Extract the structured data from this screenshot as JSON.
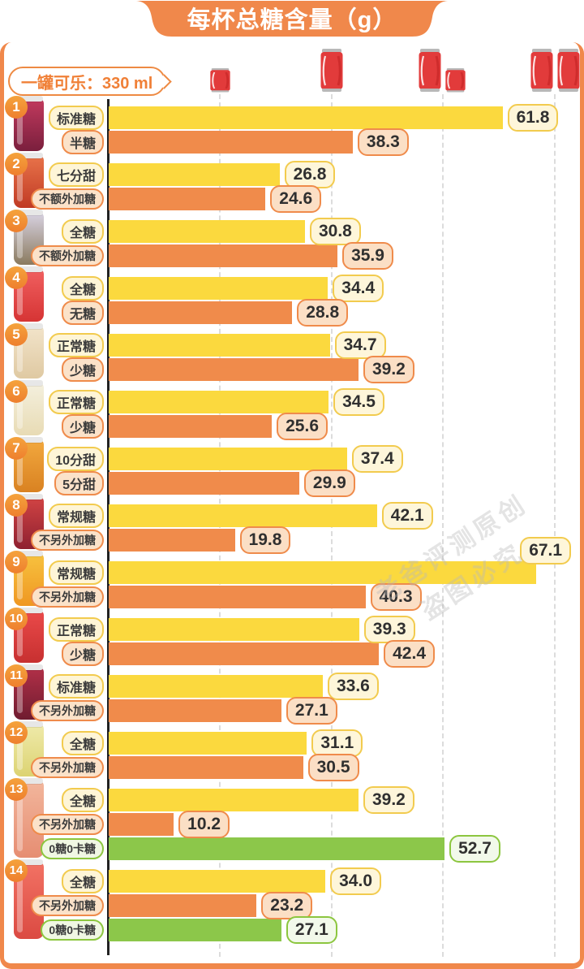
{
  "header": {
    "title": "每杯总糖含量（g）"
  },
  "legend": {
    "cola_label": "一罐可乐：330 ml"
  },
  "watermark": {
    "line1": "老爸评测原创",
    "line2": "盗图必究"
  },
  "colors": {
    "frame_orange": "#f0884b",
    "bar_yellow": "#fbd93e",
    "bar_orange": "#f08b4b",
    "bar_green": "#8cc74a",
    "pill_yellow_border": "#f2cb4e",
    "pill_orange_border": "#ef8b4b",
    "pill_green_border": "#8cc63f",
    "can_red": "#e23b3b",
    "text_dark": "#303030"
  },
  "chart_data": {
    "type": "bar",
    "title": "每杯总糖含量（g）",
    "unit": "g",
    "xlim": [
      0,
      70
    ],
    "legend_note": "一罐可乐：330 ml",
    "grid": "vertical dashed lines marked by cola-can icons",
    "can_markers": [
      0.5,
      1,
      1.5,
      2
    ],
    "items": [
      {
        "rank": 1,
        "cup": [
          "#c23a5e",
          "#7a1f3d"
        ],
        "bars": [
          {
            "label": "标准糖",
            "value": "61.8",
            "series": "yellow"
          },
          {
            "label": "半糖",
            "value": "38.3",
            "series": "orange"
          }
        ]
      },
      {
        "rank": 2,
        "cup": [
          "#e8734a",
          "#c03a24"
        ],
        "bars": [
          {
            "label": "七分甜",
            "value": "26.8",
            "series": "yellow"
          },
          {
            "label": "不额外加糖",
            "value": "24.6",
            "series": "orange"
          }
        ]
      },
      {
        "rank": 3,
        "cup": [
          "#d8d2e2",
          "#8a7a5e"
        ],
        "bars": [
          {
            "label": "全糖",
            "value": "30.8",
            "series": "yellow"
          },
          {
            "label": "不额外加糖",
            "value": "35.9",
            "series": "orange"
          }
        ]
      },
      {
        "rank": 4,
        "cup": [
          "#f06060",
          "#d63434"
        ],
        "bars": [
          {
            "label": "全糖",
            "value": "34.4",
            "series": "yellow"
          },
          {
            "label": "无糖",
            "value": "28.8",
            "series": "orange"
          }
        ]
      },
      {
        "rank": 5,
        "cup": [
          "#f2e4ca",
          "#dfc9a2"
        ],
        "bars": [
          {
            "label": "正常糖",
            "value": "34.7",
            "series": "yellow"
          },
          {
            "label": "少糖",
            "value": "39.2",
            "series": "orange"
          }
        ]
      },
      {
        "rank": 6,
        "cup": [
          "#f4f0de",
          "#e8dbb4"
        ],
        "bars": [
          {
            "label": "正常糖",
            "value": "34.5",
            "series": "yellow"
          },
          {
            "label": "少糖",
            "value": "25.6",
            "series": "orange"
          }
        ]
      },
      {
        "rank": 7,
        "cup": [
          "#f2a83e",
          "#d98222"
        ],
        "bars": [
          {
            "label": "10分甜",
            "value": "37.4",
            "series": "yellow"
          },
          {
            "label": "5分甜",
            "value": "29.9",
            "series": "orange"
          }
        ]
      },
      {
        "rank": 8,
        "cup": [
          "#d24444",
          "#8e2030"
        ],
        "bars": [
          {
            "label": "常规糖",
            "value": "42.1",
            "series": "yellow"
          },
          {
            "label": "不另外加糖",
            "value": "19.8",
            "series": "orange"
          }
        ]
      },
      {
        "rank": 9,
        "cup": [
          "#f7c23f",
          "#ef9722"
        ],
        "bars": [
          {
            "label": "常规糖",
            "value": "67.1",
            "series": "yellow",
            "value_label_above": true
          },
          {
            "label": "不另外加糖",
            "value": "40.3",
            "series": "orange"
          }
        ]
      },
      {
        "rank": 10,
        "cup": [
          "#ea4a4a",
          "#c73030"
        ],
        "bars": [
          {
            "label": "正常糖",
            "value": "39.3",
            "series": "yellow"
          },
          {
            "label": "少糖",
            "value": "42.4",
            "series": "orange"
          }
        ]
      },
      {
        "rank": 11,
        "cup": [
          "#b23048",
          "#6f1c30"
        ],
        "bars": [
          {
            "label": "标准糖",
            "value": "33.6",
            "series": "yellow"
          },
          {
            "label": "不另外加糖",
            "value": "27.1",
            "series": "orange"
          }
        ]
      },
      {
        "rank": 12,
        "cup": [
          "#efeaaa",
          "#dcd372"
        ],
        "bars": [
          {
            "label": "全糖",
            "value": "31.1",
            "series": "yellow"
          },
          {
            "label": "不另外加糖",
            "value": "30.5",
            "series": "orange"
          }
        ]
      },
      {
        "rank": 13,
        "cup": [
          "#f2b69c",
          "#e68d72"
        ],
        "bars": [
          {
            "label": "全糖",
            "value": "39.2",
            "series": "yellow"
          },
          {
            "label": "不另外加糖",
            "value": "10.2",
            "series": "orange"
          },
          {
            "label": "0糖0卡糖",
            "value": "52.7",
            "series": "green"
          }
        ]
      },
      {
        "rank": 14,
        "cup": [
          "#f27264",
          "#db4a42"
        ],
        "bars": [
          {
            "label": "全糖",
            "value": "34.0",
            "series": "yellow"
          },
          {
            "label": "不另外加糖",
            "value": "23.2",
            "series": "orange"
          },
          {
            "label": "0糖0卡糖",
            "value": "27.1",
            "series": "green"
          }
        ]
      }
    ]
  }
}
